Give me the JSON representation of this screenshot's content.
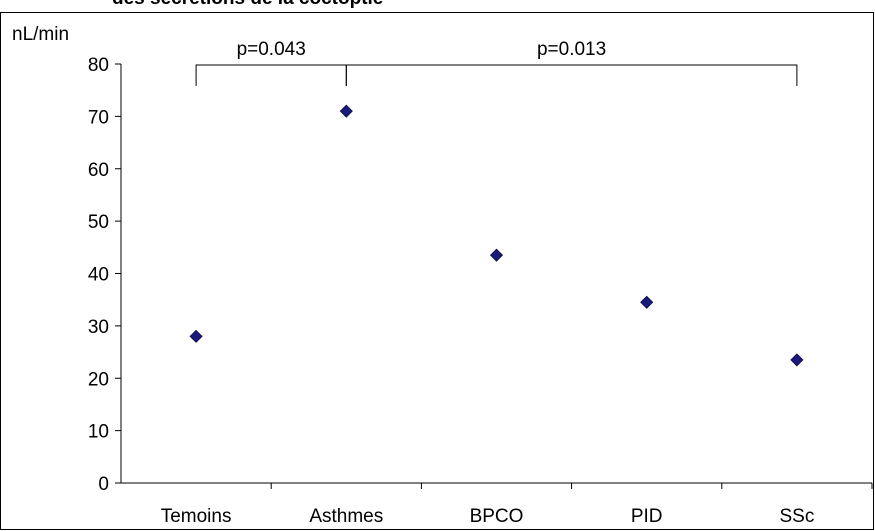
{
  "chart_data": {
    "type": "scatter",
    "title": "",
    "cut_title": "des sécrétions de la coctoptie",
    "ylabel": "nL/min",
    "xlabel": "",
    "categories": [
      "Temoins",
      "Asthmes",
      "BPCO",
      "PID",
      "SSc"
    ],
    "series": [
      {
        "values": [
          28,
          71,
          43.5,
          34.5,
          23.5
        ],
        "error": [
          0.8,
          0.8,
          0.8,
          0.8,
          0.8
        ]
      }
    ],
    "ylim": [
      0,
      80
    ],
    "yticks": [
      0,
      10,
      20,
      30,
      40,
      50,
      60,
      70,
      80
    ],
    "grid": false,
    "legend": "none",
    "marker_color": "#1a1a7a",
    "annotations": [
      {
        "label": "p=0.043",
        "from": "Temoins",
        "to": "Asthmes"
      },
      {
        "label": "p=0.013",
        "from": "Asthmes",
        "to": "SSc"
      }
    ]
  }
}
